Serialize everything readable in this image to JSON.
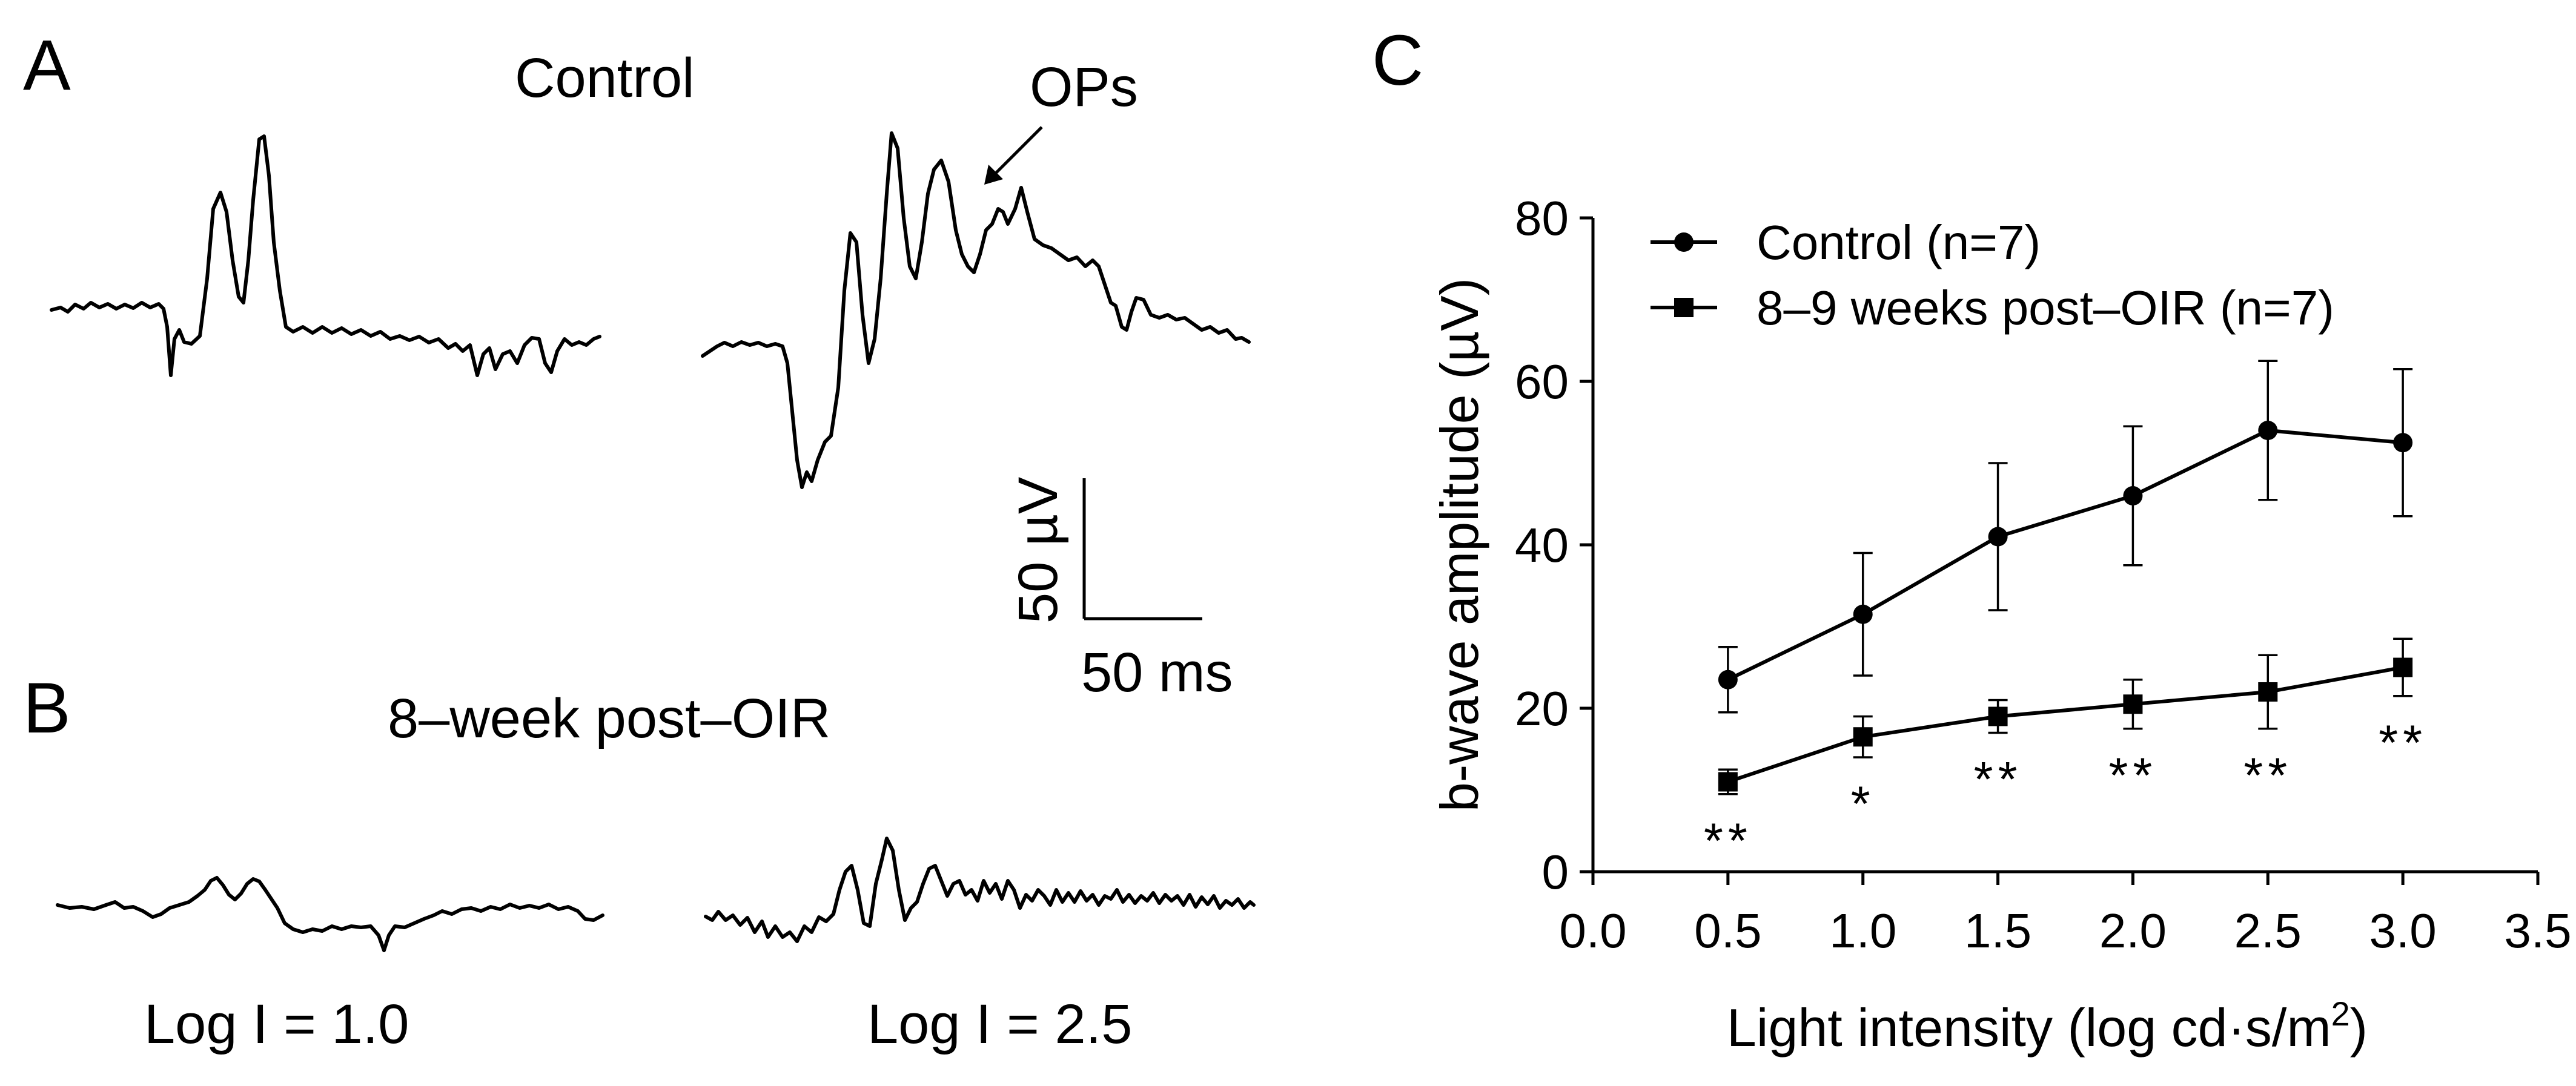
{
  "panels": {
    "a_label": "A",
    "b_label": "B",
    "c_label": "C",
    "control_title": "Control",
    "oir_title": "8–week post–OIR",
    "ops_label": "OPs",
    "scale_v": "50 µV",
    "scale_t": "50 ms",
    "log_low": "Log I = 1.0",
    "log_high": "Log I = 2.5"
  },
  "chart_data": {
    "type": "line",
    "title": "",
    "xlabel_main": "Light intensity (log cd·s/m",
    "xlabel_sup": "2",
    "xlabel_end": ")",
    "ylabel": "b-wave amplitude (µV)",
    "xlim": [
      0.0,
      3.5
    ],
    "ylim": [
      0,
      80
    ],
    "xticks": [
      "0.0",
      "0.5",
      "1.0",
      "1.5",
      "2.0",
      "2.5",
      "3.0",
      "3.5"
    ],
    "yticks": [
      "0",
      "20",
      "40",
      "60",
      "80"
    ],
    "x": [
      0.5,
      1.0,
      1.5,
      2.0,
      2.5,
      3.0
    ],
    "series": [
      {
        "name": "Control (n=7)",
        "marker": "circle",
        "values": [
          23.5,
          31.5,
          41.0,
          46.0,
          54.0,
          52.5
        ],
        "errors": [
          4.0,
          7.5,
          9.0,
          8.5,
          8.5,
          9.0
        ]
      },
      {
        "name": "8–9 weeks post–OIR (n=7)",
        "marker": "square",
        "values": [
          11.0,
          16.5,
          19.0,
          20.5,
          22.0,
          25.0
        ],
        "errors": [
          1.5,
          2.5,
          2.0,
          3.0,
          4.5,
          3.5
        ]
      }
    ],
    "significance": [
      "**",
      "*",
      "**",
      "**",
      "**",
      "**"
    ],
    "legend_position": "top-left"
  }
}
